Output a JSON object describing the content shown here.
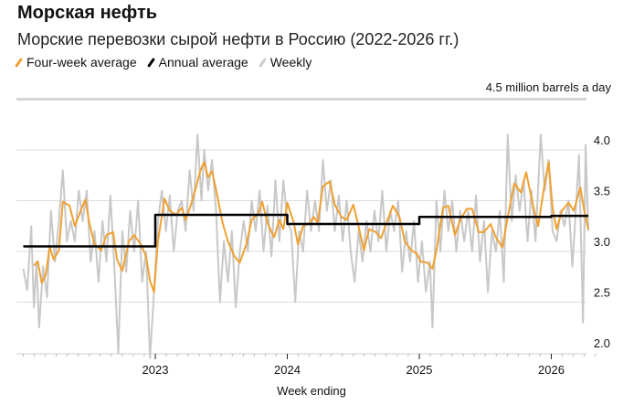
{
  "chart_data": {
    "type": "line",
    "title": "Морская нефть",
    "subtitle": "Морские перевозки сырой нефти в Россию (2022-2026 гг.)",
    "xlabel": "Week ending",
    "ylabel": "4.5 million barrels a day",
    "ylim": [
      2.0,
      4.5
    ],
    "xlim": [
      2022.0,
      2026.35
    ],
    "y_ticks": [
      "2.0",
      "2.5",
      "3.0",
      "3.5",
      "4.0"
    ],
    "x_ticks": [
      {
        "label": "2023",
        "value": 2023
      },
      {
        "label": "2024",
        "value": 2024
      },
      {
        "label": "2025",
        "value": 2025
      },
      {
        "label": "2026",
        "value": 2026
      }
    ],
    "grid": true,
    "legend_position": "top-left",
    "series": [
      {
        "name": "Weekly",
        "color": "#c8c8c8",
        "x": [
          2022.0,
          2022.03,
          2022.06,
          2022.08,
          2022.1,
          2022.12,
          2022.15,
          2022.18,
          2022.21,
          2022.24,
          2022.27,
          2022.3,
          2022.33,
          2022.36,
          2022.39,
          2022.42,
          2022.45,
          2022.48,
          2022.51,
          2022.54,
          2022.57,
          2022.6,
          2022.63,
          2022.66,
          2022.69,
          2022.72,
          2022.75,
          2022.78,
          2022.81,
          2022.84,
          2022.87,
          2022.9,
          2022.93,
          2022.96,
          2022.99,
          2023.02,
          2023.05,
          2023.08,
          2023.11,
          2023.14,
          2023.17,
          2023.2,
          2023.23,
          2023.26,
          2023.29,
          2023.32,
          2023.35,
          2023.37,
          2023.4,
          2023.43,
          2023.46,
          2023.49,
          2023.52,
          2023.55,
          2023.58,
          2023.61,
          2023.64,
          2023.67,
          2023.7,
          2023.73,
          2023.76,
          2023.79,
          2023.82,
          2023.85,
          2023.88,
          2023.91,
          2023.94,
          2023.97,
          2024.0,
          2024.03,
          2024.06,
          2024.09,
          2024.12,
          2024.15,
          2024.18,
          2024.21,
          2024.24,
          2024.27,
          2024.3,
          2024.33,
          2024.36,
          2024.39,
          2024.42,
          2024.45,
          2024.48,
          2024.51,
          2024.54,
          2024.57,
          2024.6,
          2024.63,
          2024.66,
          2024.69,
          2024.72,
          2024.75,
          2024.78,
          2024.81,
          2024.84,
          2024.87,
          2024.9,
          2024.93,
          2024.96,
          2024.99,
          2025.02,
          2025.05,
          2025.08,
          2025.1,
          2025.13,
          2025.16,
          2025.19,
          2025.22,
          2025.25,
          2025.28,
          2025.31,
          2025.34,
          2025.37,
          2025.4,
          2025.43,
          2025.46,
          2025.49,
          2025.52,
          2025.55,
          2025.58,
          2025.61,
          2025.64,
          2025.67,
          2025.7,
          2025.73,
          2025.76,
          2025.79,
          2025.82,
          2025.85,
          2025.88,
          2025.92,
          2025.95,
          2025.98,
          2026.01,
          2026.04,
          2026.07,
          2026.1,
          2026.13,
          2026.16,
          2026.19,
          2026.21,
          2026.24,
          2026.26,
          2026.28
        ],
        "values": [
          2.83,
          2.62,
          3.25,
          2.45,
          2.9,
          2.25,
          2.85,
          2.55,
          3.4,
          2.9,
          3.3,
          3.8,
          3.1,
          3.3,
          3.1,
          3.6,
          3.3,
          3.6,
          2.9,
          3.2,
          2.7,
          3.3,
          2.9,
          3.55,
          2.85,
          2.0,
          3.2,
          2.8,
          3.4,
          3.0,
          3.5,
          2.7,
          3.0,
          1.95,
          2.6,
          3.3,
          3.6,
          3.2,
          3.55,
          3.0,
          3.4,
          3.5,
          3.2,
          3.8,
          3.4,
          4.15,
          3.5,
          4.0,
          3.6,
          3.9,
          3.4,
          2.5,
          3.1,
          2.7,
          3.2,
          2.45,
          3.0,
          3.3,
          3.0,
          3.5,
          3.2,
          3.6,
          3.0,
          3.45,
          2.95,
          3.7,
          3.1,
          3.7,
          3.3,
          3.2,
          2.5,
          3.2,
          3.0,
          3.6,
          3.2,
          3.5,
          3.2,
          3.9,
          3.4,
          3.7,
          3.2,
          3.55,
          3.1,
          3.5,
          3.0,
          2.7,
          3.2,
          2.9,
          3.3,
          3.0,
          3.4,
          3.1,
          3.6,
          3.0,
          3.4,
          3.2,
          3.5,
          2.8,
          3.2,
          2.9,
          3.3,
          2.7,
          3.1,
          2.6,
          2.9,
          2.25,
          3.5,
          3.0,
          3.6,
          3.2,
          3.5,
          3.0,
          3.4,
          3.1,
          3.4,
          3.0,
          3.55,
          2.9,
          3.3,
          2.6,
          3.2,
          3.0,
          3.4,
          2.7,
          4.15,
          3.3,
          3.75,
          3.4,
          3.7,
          3.1,
          3.6,
          3.1,
          4.15,
          3.6,
          3.9,
          3.2,
          3.1,
          3.4,
          3.25,
          3.5,
          2.85,
          3.5,
          3.95,
          2.3,
          4.05,
          3.2
        ]
      },
      {
        "name": "Four-week average",
        "color": "#f0a030",
        "x": [
          2022.08,
          2022.11,
          2022.14,
          2022.17,
          2022.2,
          2022.23,
          2022.27,
          2022.3,
          2022.35,
          2022.39,
          2022.44,
          2022.47,
          2022.5,
          2022.54,
          2022.59,
          2022.63,
          2022.68,
          2022.71,
          2022.75,
          2022.8,
          2022.84,
          2022.89,
          2022.93,
          2022.96,
          2022.99,
          2023.02,
          2023.07,
          2023.11,
          2023.16,
          2023.2,
          2023.23,
          2023.27,
          2023.31,
          2023.34,
          2023.37,
          2023.4,
          2023.43,
          2023.46,
          2023.51,
          2023.55,
          2023.6,
          2023.64,
          2023.69,
          2023.73,
          2023.78,
          2023.81,
          2023.85,
          2023.9,
          2023.94,
          2023.97,
          2024.0,
          2024.05,
          2024.08,
          2024.12,
          2024.17,
          2024.2,
          2024.23,
          2024.27,
          2024.32,
          2024.36,
          2024.41,
          2024.45,
          2024.5,
          2024.55,
          2024.58,
          2024.62,
          2024.67,
          2024.71,
          2024.76,
          2024.8,
          2024.85,
          2024.89,
          2024.94,
          2024.98,
          2025.01,
          2025.06,
          2025.1,
          2025.13,
          2025.18,
          2025.22,
          2025.27,
          2025.31,
          2025.36,
          2025.4,
          2025.45,
          2025.49,
          2025.54,
          2025.58,
          2025.63,
          2025.67,
          2025.72,
          2025.77,
          2025.81,
          2025.86,
          2025.9,
          2025.95,
          2025.98,
          2026.01,
          2026.04,
          2026.08,
          2026.13,
          2026.17,
          2026.22,
          2026.25,
          2026.28
        ],
        "values": [
          2.86,
          2.9,
          2.69,
          2.77,
          3.05,
          2.92,
          3.01,
          3.49,
          3.45,
          3.25,
          3.42,
          3.51,
          3.28,
          3.07,
          3.01,
          3.16,
          3.19,
          2.92,
          2.81,
          3.1,
          3.16,
          3.07,
          2.95,
          2.71,
          2.6,
          3.1,
          3.52,
          3.4,
          3.36,
          3.43,
          3.31,
          3.46,
          3.64,
          3.79,
          3.88,
          3.73,
          3.79,
          3.61,
          3.28,
          3.1,
          2.95,
          2.89,
          3.07,
          3.31,
          3.37,
          3.49,
          3.28,
          3.14,
          3.31,
          3.22,
          3.48,
          3.28,
          3.07,
          3.25,
          3.28,
          3.34,
          3.28,
          3.64,
          3.69,
          3.46,
          3.34,
          3.31,
          3.46,
          3.19,
          3.01,
          3.22,
          3.19,
          3.13,
          3.31,
          3.45,
          3.34,
          3.1,
          3.01,
          2.98,
          2.9,
          2.89,
          2.83,
          3.01,
          3.43,
          3.45,
          3.16,
          3.31,
          3.42,
          3.42,
          3.19,
          3.19,
          3.27,
          3.14,
          3.04,
          3.34,
          3.67,
          3.58,
          3.78,
          3.46,
          3.25,
          3.67,
          3.88,
          3.43,
          3.22,
          3.4,
          3.48,
          3.4,
          3.63,
          3.4,
          3.22
        ]
      },
      {
        "name": "Annual average",
        "color": "#000000",
        "x": [
          2022.0,
          2023.0,
          2023.0,
          2024.0,
          2024.0,
          2025.0,
          2025.0,
          2026.0,
          2026.0,
          2026.28
        ],
        "values": [
          3.05,
          3.05,
          3.36,
          3.36,
          3.27,
          3.27,
          3.34,
          3.34,
          3.35,
          3.35
        ]
      }
    ]
  }
}
